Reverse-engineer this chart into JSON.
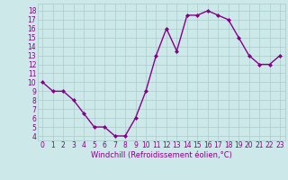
{
  "x": [
    0,
    1,
    2,
    3,
    4,
    5,
    6,
    7,
    8,
    9,
    10,
    11,
    12,
    13,
    14,
    15,
    16,
    17,
    18,
    19,
    20,
    21,
    22,
    23
  ],
  "y": [
    10,
    9,
    9,
    8,
    6.5,
    5,
    5,
    4,
    4,
    6,
    9,
    13,
    16,
    13.5,
    17.5,
    17.5,
    18,
    17.5,
    17,
    15,
    13,
    12,
    12,
    13
  ],
  "line_color": "#880088",
  "marker": "D",
  "marker_size": 2.0,
  "bg_color": "#cce8e8",
  "grid_color": "#aacccc",
  "xlabel": "Windchill (Refroidissement éolien,°C)",
  "xlabel_fontsize": 6.0,
  "ytick_labels": [
    "4",
    "5",
    "6",
    "7",
    "8",
    "9",
    "10",
    "11",
    "12",
    "13",
    "14",
    "15",
    "16",
    "17",
    "18"
  ],
  "ytick_values": [
    4,
    5,
    6,
    7,
    8,
    9,
    10,
    11,
    12,
    13,
    14,
    15,
    16,
    17,
    18
  ],
  "xtick_labels": [
    "0",
    "1",
    "2",
    "3",
    "4",
    "5",
    "6",
    "7",
    "8",
    "9",
    "10",
    "11",
    "12",
    "13",
    "14",
    "15",
    "16",
    "17",
    "18",
    "19",
    "20",
    "21",
    "22",
    "23"
  ],
  "ylim": [
    3.5,
    18.8
  ],
  "xlim": [
    -0.5,
    23.5
  ],
  "tick_color": "#880088",
  "tick_fontsize": 5.5,
  "line_width": 1.0
}
